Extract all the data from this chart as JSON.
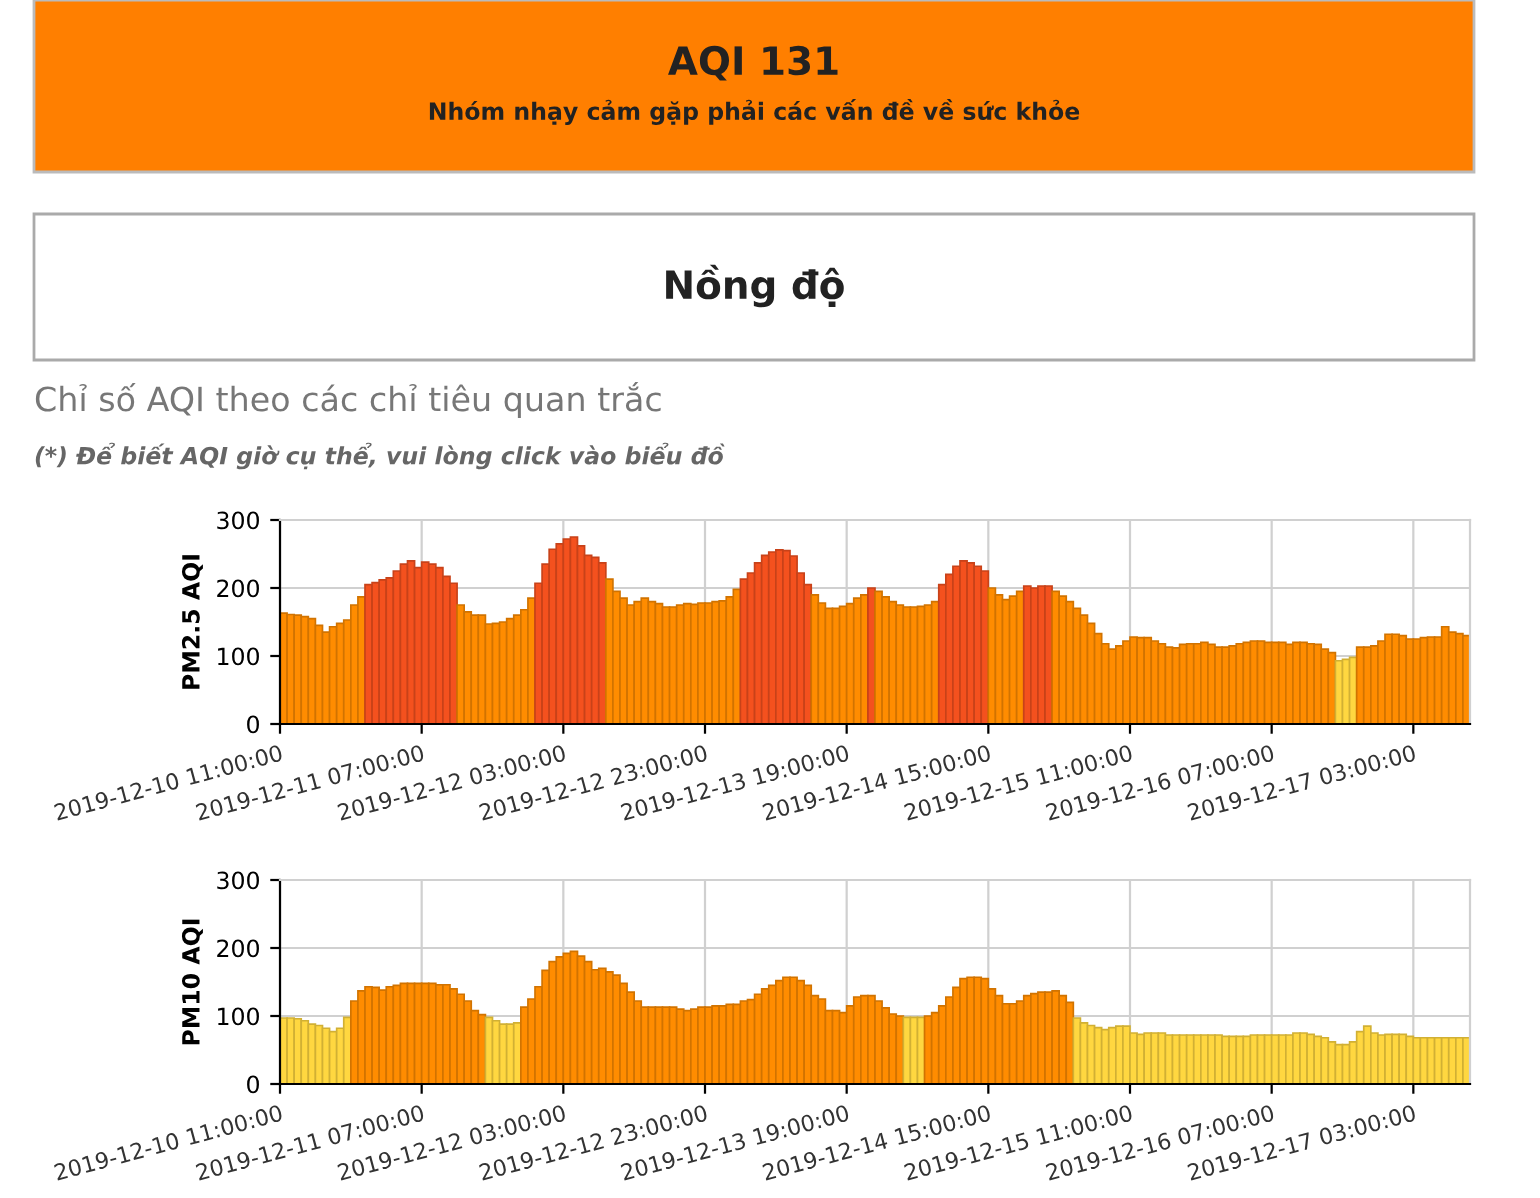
{
  "chart_data": [
    {
      "type": "bar",
      "title": "AQI 131",
      "subtitle": "Nhóm nhạy cảm gặp phải các vấn đề về sức khỏe",
      "annotations": [
        "Nồng độ",
        "Chỉ số AQI theo các chỉ tiêu quan trắc",
        "(*) Để biết AQI giờ cụ thể, vui lòng click vào biểu đồ"
      ],
      "ylabel": "PM2.5 AQI",
      "x": [
        "2019-12-10T11:00",
        "2019-12-10T12:00",
        "2019-12-10T13:00",
        "2019-12-10T14:00",
        "2019-12-10T15:00",
        "2019-12-10T16:00",
        "2019-12-10T17:00",
        "2019-12-10T18:00",
        "2019-12-10T19:00",
        "2019-12-10T20:00",
        "2019-12-10T21:00",
        "2019-12-10T22:00",
        "2019-12-10T23:00",
        "2019-12-11T00:00",
        "2019-12-11T01:00",
        "2019-12-11T02:00",
        "2019-12-11T03:00",
        "2019-12-11T04:00",
        "2019-12-11T05:00",
        "2019-12-11T06:00",
        "2019-12-11T07:00",
        "2019-12-11T08:00",
        "2019-12-11T09:00",
        "2019-12-11T10:00",
        "2019-12-11T11:00",
        "2019-12-11T12:00",
        "2019-12-11T13:00",
        "2019-12-11T14:00",
        "2019-12-11T15:00",
        "2019-12-11T16:00",
        "2019-12-11T17:00",
        "2019-12-11T18:00",
        "2019-12-11T19:00",
        "2019-12-11T20:00",
        "2019-12-11T21:00",
        "2019-12-11T22:00",
        "2019-12-11T23:00",
        "2019-12-12T00:00",
        "2019-12-12T01:00",
        "2019-12-12T02:00",
        "2019-12-12T03:00",
        "2019-12-12T04:00",
        "2019-12-12T05:00",
        "2019-12-12T06:00",
        "2019-12-12T07:00",
        "2019-12-12T08:00",
        "2019-12-12T09:00",
        "2019-12-12T10:00",
        "2019-12-12T11:00",
        "2019-12-12T12:00",
        "2019-12-12T13:00",
        "2019-12-12T14:00",
        "2019-12-12T15:00",
        "2019-12-12T16:00",
        "2019-12-12T17:00",
        "2019-12-12T18:00",
        "2019-12-12T19:00",
        "2019-12-12T20:00",
        "2019-12-12T21:00",
        "2019-12-12T22:00",
        "2019-12-12T23:00",
        "2019-12-13T00:00",
        "2019-12-13T01:00",
        "2019-12-13T02:00",
        "2019-12-13T03:00",
        "2019-12-13T04:00",
        "2019-12-13T05:00",
        "2019-12-13T06:00",
        "2019-12-13T07:00",
        "2019-12-13T08:00",
        "2019-12-13T09:00",
        "2019-12-13T10:00",
        "2019-12-13T11:00",
        "2019-12-13T12:00",
        "2019-12-13T13:00",
        "2019-12-13T14:00",
        "2019-12-13T15:00",
        "2019-12-13T16:00",
        "2019-12-13T17:00",
        "2019-12-13T18:00",
        "2019-12-13T19:00",
        "2019-12-13T20:00",
        "2019-12-13T21:00",
        "2019-12-13T22:00",
        "2019-12-13T23:00",
        "2019-12-14T00:00",
        "2019-12-14T01:00",
        "2019-12-14T02:00",
        "2019-12-14T03:00",
        "2019-12-14T04:00",
        "2019-12-14T05:00",
        "2019-12-14T06:00",
        "2019-12-14T07:00",
        "2019-12-14T08:00",
        "2019-12-14T09:00",
        "2019-12-14T10:00",
        "2019-12-14T11:00",
        "2019-12-14T12:00",
        "2019-12-14T13:00",
        "2019-12-14T14:00",
        "2019-12-14T15:00",
        "2019-12-14T16:00",
        "2019-12-14T17:00",
        "2019-12-14T18:00",
        "2019-12-14T19:00",
        "2019-12-14T20:00",
        "2019-12-14T21:00",
        "2019-12-14T22:00",
        "2019-12-14T23:00",
        "2019-12-15T00:00",
        "2019-12-15T01:00",
        "2019-12-15T02:00",
        "2019-12-15T03:00",
        "2019-12-15T04:00",
        "2019-12-15T05:00",
        "2019-12-15T06:00",
        "2019-12-15T07:00",
        "2019-12-15T08:00",
        "2019-12-15T09:00",
        "2019-12-15T10:00",
        "2019-12-15T11:00",
        "2019-12-15T12:00",
        "2019-12-15T13:00",
        "2019-12-15T14:00",
        "2019-12-15T15:00",
        "2019-12-15T16:00",
        "2019-12-15T17:00",
        "2019-12-15T18:00",
        "2019-12-15T19:00",
        "2019-12-15T20:00",
        "2019-12-15T21:00",
        "2019-12-15T22:00",
        "2019-12-15T23:00",
        "2019-12-16T00:00",
        "2019-12-16T01:00",
        "2019-12-16T02:00",
        "2019-12-16T03:00",
        "2019-12-16T04:00",
        "2019-12-16T05:00",
        "2019-12-16T06:00",
        "2019-12-16T07:00",
        "2019-12-16T08:00",
        "2019-12-16T09:00",
        "2019-12-16T10:00",
        "2019-12-16T11:00",
        "2019-12-16T12:00",
        "2019-12-16T13:00",
        "2019-12-16T14:00",
        "2019-12-16T15:00",
        "2019-12-16T16:00",
        "2019-12-16T17:00",
        "2019-12-16T18:00",
        "2019-12-16T19:00",
        "2019-12-16T20:00",
        "2019-12-16T21:00",
        "2019-12-16T22:00",
        "2019-12-16T23:00",
        "2019-12-17T00:00",
        "2019-12-17T01:00",
        "2019-12-17T02:00",
        "2019-12-17T03:00",
        "2019-12-17T04:00",
        "2019-12-17T05:00",
        "2019-12-17T06:00",
        "2019-12-17T07:00",
        "2019-12-17T08:00",
        "2019-12-17T09:00",
        "2019-12-17T10:00"
      ],
      "values": [
        163,
        161,
        160,
        158,
        155,
        145,
        135,
        143,
        148,
        153,
        175,
        187,
        205,
        208,
        212,
        215,
        225,
        235,
        240,
        230,
        238,
        235,
        230,
        217,
        207,
        175,
        165,
        160,
        160,
        147,
        148,
        150,
        155,
        160,
        168,
        185,
        207,
        235,
        257,
        265,
        272,
        275,
        262,
        248,
        245,
        237,
        213,
        195,
        185,
        175,
        180,
        185,
        180,
        177,
        172,
        172,
        175,
        177,
        176,
        178,
        178,
        180,
        181,
        187,
        198,
        213,
        222,
        237,
        248,
        253,
        256,
        255,
        247,
        222,
        205,
        190,
        178,
        170,
        170,
        173,
        177,
        185,
        190,
        200,
        195,
        187,
        180,
        175,
        172,
        172,
        173,
        175,
        180,
        205,
        220,
        232,
        240,
        237,
        232,
        225,
        200,
        190,
        183,
        188,
        195,
        203,
        200,
        203,
        203,
        195,
        188,
        180,
        170,
        160,
        148,
        133,
        118,
        110,
        115,
        122,
        128,
        127,
        127,
        122,
        118,
        113,
        112,
        117,
        118,
        118,
        120,
        117,
        113,
        113,
        115,
        118,
        120,
        122,
        122,
        120,
        120,
        120,
        117,
        120,
        120,
        118,
        117,
        110,
        105,
        93,
        95,
        98,
        113,
        113,
        115,
        122,
        132,
        132,
        130,
        125,
        125,
        127,
        128,
        128,
        143,
        135,
        133,
        130
      ],
      "colors": [
        "#ff8c00",
        "#ff8c00",
        "#ff8c00",
        "#ff8c00",
        "#ff8c00",
        "#ff8c00",
        "#ff8c00",
        "#ff8c00",
        "#ff8c00",
        "#ff8c00",
        "#ff8c00",
        "#ff8c00",
        "#f4511e",
        "#f4511e",
        "#f4511e",
        "#f4511e",
        "#f4511e",
        "#f4511e",
        "#f4511e",
        "#f4511e",
        "#f4511e",
        "#f4511e",
        "#f4511e",
        "#f4511e",
        "#f4511e",
        "#ff8c00",
        "#ff8c00",
        "#ff8c00",
        "#ff8c00",
        "#ff8c00",
        "#ff8c00",
        "#ff8c00",
        "#ff8c00",
        "#ff8c00",
        "#ff8c00",
        "#ff8c00",
        "#f4511e",
        "#f4511e",
        "#f4511e",
        "#f4511e",
        "#f4511e",
        "#f4511e",
        "#f4511e",
        "#f4511e",
        "#f4511e",
        "#f4511e",
        "#ff8c00",
        "#ff8c00",
        "#ff8c00",
        "#ff8c00",
        "#ff8c00",
        "#ff8c00",
        "#ff8c00",
        "#ff8c00",
        "#ff8c00",
        "#ff8c00",
        "#ff8c00",
        "#ff8c00",
        "#ff8c00",
        "#ff8c00",
        "#ff8c00",
        "#ff8c00",
        "#ff8c00",
        "#ff8c00",
        "#ff8c00",
        "#f4511e",
        "#f4511e",
        "#f4511e",
        "#f4511e",
        "#f4511e",
        "#f4511e",
        "#f4511e",
        "#f4511e",
        "#f4511e",
        "#f4511e",
        "#ff8c00",
        "#ff8c00",
        "#ff8c00",
        "#ff8c00",
        "#ff8c00",
        "#ff8c00",
        "#ff8c00",
        "#ff8c00",
        "#f4511e",
        "#ff8c00",
        "#ff8c00",
        "#ff8c00",
        "#ff8c00",
        "#ff8c00",
        "#ff8c00",
        "#ff8c00",
        "#ff8c00",
        "#ff8c00",
        "#f4511e",
        "#f4511e",
        "#f4511e",
        "#f4511e",
        "#f4511e",
        "#f4511e",
        "#f4511e",
        "#ff8c00",
        "#ff8c00",
        "#ff8c00",
        "#ff8c00",
        "#ff8c00",
        "#f4511e",
        "#f4511e",
        "#f4511e",
        "#f4511e",
        "#ff8c00",
        "#ff8c00",
        "#ff8c00",
        "#ff8c00",
        "#ff8c00",
        "#ff8c00",
        "#ff8c00",
        "#ff8c00",
        "#ff8c00",
        "#ff8c00",
        "#ff8c00",
        "#ff8c00",
        "#ff8c00",
        "#ff8c00",
        "#ff8c00",
        "#ff8c00",
        "#ff8c00",
        "#ff8c00",
        "#ff8c00",
        "#ff8c00",
        "#ff8c00",
        "#ff8c00",
        "#ff8c00",
        "#ff8c00",
        "#ff8c00",
        "#ff8c00",
        "#ff8c00",
        "#ff8c00",
        "#ff8c00",
        "#ff8c00",
        "#ff8c00",
        "#ff8c00",
        "#ff8c00",
        "#ff8c00",
        "#ff8c00",
        "#ff8c00",
        "#ff8c00",
        "#ff8c00",
        "#ff8c00",
        "#ff8c00",
        "#ffd740",
        "#ffd740",
        "#ffd740",
        "#ff8c00",
        "#ff8c00",
        "#ff8c00",
        "#ff8c00",
        "#ff8c00",
        "#ff8c00",
        "#ff8c00",
        "#ff8c00",
        "#ff8c00",
        "#ff8c00",
        "#ff8c00",
        "#ff8c00",
        "#ff8c00",
        "#ff8c00",
        "#ff8c00",
        "#ff8c00"
      ],
      "xlim": [
        "2019-12-10T11:00",
        "2019-12-17T11:00"
      ],
      "xticks": [
        {
          "value": "2019-12-10T11:00",
          "label": "2019-12-10 11:00:00"
        },
        {
          "value": "2019-12-11T07:00",
          "label": "2019-12-11 07:00:00"
        },
        {
          "value": "2019-12-12T03:00",
          "label": "2019-12-12 03:00:00"
        },
        {
          "value": "2019-12-12T23:00",
          "label": "2019-12-12 23:00:00"
        },
        {
          "value": "2019-12-13T19:00",
          "label": "2019-12-13 19:00:00"
        },
        {
          "value": "2019-12-14T15:00",
          "label": "2019-12-14 15:00:00"
        },
        {
          "value": "2019-12-15T11:00",
          "label": "2019-12-15 11:00:00"
        },
        {
          "value": "2019-12-16T07:00",
          "label": "2019-12-16 07:00:00"
        },
        {
          "value": "2019-12-17T03:00",
          "label": "2019-12-17 03:00:00"
        }
      ],
      "ylim": [
        0,
        300
      ],
      "yticks": [
        0,
        100,
        200,
        300
      ],
      "grid": true,
      "legend": false
    },
    {
      "type": "bar",
      "ylabel": "PM10 AQI",
      "x": [
        "2019-12-10T11:00",
        "2019-12-10T12:00",
        "2019-12-10T13:00",
        "2019-12-10T14:00",
        "2019-12-10T15:00",
        "2019-12-10T16:00",
        "2019-12-10T17:00",
        "2019-12-10T18:00",
        "2019-12-10T19:00",
        "2019-12-10T20:00",
        "2019-12-10T21:00",
        "2019-12-10T22:00",
        "2019-12-10T23:00",
        "2019-12-11T00:00",
        "2019-12-11T01:00",
        "2019-12-11T02:00",
        "2019-12-11T03:00",
        "2019-12-11T04:00",
        "2019-12-11T05:00",
        "2019-12-11T06:00",
        "2019-12-11T07:00",
        "2019-12-11T08:00",
        "2019-12-11T09:00",
        "2019-12-11T10:00",
        "2019-12-11T11:00",
        "2019-12-11T12:00",
        "2019-12-11T13:00",
        "2019-12-11T14:00",
        "2019-12-11T15:00",
        "2019-12-11T16:00",
        "2019-12-11T17:00",
        "2019-12-11T18:00",
        "2019-12-11T19:00",
        "2019-12-11T20:00",
        "2019-12-11T21:00",
        "2019-12-11T22:00",
        "2019-12-11T23:00",
        "2019-12-12T00:00",
        "2019-12-12T01:00",
        "2019-12-12T02:00",
        "2019-12-12T03:00",
        "2019-12-12T04:00",
        "2019-12-12T05:00",
        "2019-12-12T06:00",
        "2019-12-12T07:00",
        "2019-12-12T08:00",
        "2019-12-12T09:00",
        "2019-12-12T10:00",
        "2019-12-12T11:00",
        "2019-12-12T12:00",
        "2019-12-12T13:00",
        "2019-12-12T14:00",
        "2019-12-12T15:00",
        "2019-12-12T16:00",
        "2019-12-12T17:00",
        "2019-12-12T18:00",
        "2019-12-12T19:00",
        "2019-12-12T20:00",
        "2019-12-12T21:00",
        "2019-12-12T22:00",
        "2019-12-12T23:00",
        "2019-12-13T00:00",
        "2019-12-13T01:00",
        "2019-12-13T02:00",
        "2019-12-13T03:00",
        "2019-12-13T04:00",
        "2019-12-13T05:00",
        "2019-12-13T06:00",
        "2019-12-13T07:00",
        "2019-12-13T08:00",
        "2019-12-13T09:00",
        "2019-12-13T10:00",
        "2019-12-13T11:00",
        "2019-12-13T12:00",
        "2019-12-13T13:00",
        "2019-12-13T14:00",
        "2019-12-13T15:00",
        "2019-12-13T16:00",
        "2019-12-13T17:00",
        "2019-12-13T18:00",
        "2019-12-13T19:00",
        "2019-12-13T20:00",
        "2019-12-13T21:00",
        "2019-12-13T22:00",
        "2019-12-13T23:00",
        "2019-12-14T00:00",
        "2019-12-14T01:00",
        "2019-12-14T02:00",
        "2019-12-14T03:00",
        "2019-12-14T04:00",
        "2019-12-14T05:00",
        "2019-12-14T06:00",
        "2019-12-14T07:00",
        "2019-12-14T08:00",
        "2019-12-14T09:00",
        "2019-12-14T10:00",
        "2019-12-14T11:00",
        "2019-12-14T12:00",
        "2019-12-14T13:00",
        "2019-12-14T14:00",
        "2019-12-14T15:00",
        "2019-12-14T16:00",
        "2019-12-14T17:00",
        "2019-12-14T18:00",
        "2019-12-14T19:00",
        "2019-12-14T20:00",
        "2019-12-14T21:00",
        "2019-12-14T22:00",
        "2019-12-14T23:00",
        "2019-12-15T00:00",
        "2019-12-15T01:00",
        "2019-12-15T02:00",
        "2019-12-15T03:00",
        "2019-12-15T04:00",
        "2019-12-15T05:00",
        "2019-12-15T06:00",
        "2019-12-15T07:00",
        "2019-12-15T08:00",
        "2019-12-15T09:00",
        "2019-12-15T10:00",
        "2019-12-15T11:00",
        "2019-12-15T12:00",
        "2019-12-15T13:00",
        "2019-12-15T14:00",
        "2019-12-15T15:00",
        "2019-12-15T16:00",
        "2019-12-15T17:00",
        "2019-12-15T18:00",
        "2019-12-15T19:00",
        "2019-12-15T20:00",
        "2019-12-15T21:00",
        "2019-12-15T22:00",
        "2019-12-15T23:00",
        "2019-12-16T00:00",
        "2019-12-16T01:00",
        "2019-12-16T02:00",
        "2019-12-16T03:00",
        "2019-12-16T04:00",
        "2019-12-16T05:00",
        "2019-12-16T06:00",
        "2019-12-16T07:00",
        "2019-12-16T08:00",
        "2019-12-16T09:00",
        "2019-12-16T10:00",
        "2019-12-16T11:00",
        "2019-12-16T12:00",
        "2019-12-16T13:00",
        "2019-12-16T14:00",
        "2019-12-16T15:00",
        "2019-12-16T16:00",
        "2019-12-16T17:00",
        "2019-12-16T18:00",
        "2019-12-16T19:00",
        "2019-12-16T20:00",
        "2019-12-16T21:00",
        "2019-12-16T22:00",
        "2019-12-16T23:00",
        "2019-12-17T00:00",
        "2019-12-17T01:00",
        "2019-12-17T02:00",
        "2019-12-17T03:00",
        "2019-12-17T04:00",
        "2019-12-17T05:00",
        "2019-12-17T06:00",
        "2019-12-17T07:00",
        "2019-12-17T08:00",
        "2019-12-17T09:00",
        "2019-12-17T10:00"
      ],
      "values": [
        97,
        97,
        96,
        93,
        88,
        86,
        82,
        77,
        82,
        98,
        122,
        137,
        143,
        142,
        138,
        143,
        145,
        148,
        148,
        148,
        148,
        148,
        146,
        146,
        140,
        132,
        122,
        108,
        102,
        98,
        93,
        88,
        88,
        90,
        113,
        125,
        143,
        167,
        180,
        187,
        192,
        195,
        188,
        180,
        168,
        170,
        165,
        160,
        148,
        135,
        122,
        113,
        113,
        113,
        113,
        113,
        110,
        108,
        110,
        113,
        113,
        115,
        115,
        117,
        117,
        122,
        124,
        132,
        140,
        145,
        152,
        157,
        157,
        152,
        145,
        130,
        125,
        108,
        108,
        105,
        115,
        128,
        130,
        130,
        122,
        112,
        103,
        100,
        98,
        98,
        98,
        100,
        105,
        115,
        128,
        142,
        155,
        157,
        157,
        155,
        140,
        130,
        118,
        118,
        122,
        130,
        133,
        135,
        135,
        137,
        130,
        120,
        97,
        90,
        86,
        83,
        80,
        83,
        85,
        85,
        75,
        73,
        75,
        75,
        75,
        72,
        72,
        72,
        72,
        72,
        72,
        72,
        72,
        70,
        70,
        70,
        70,
        72,
        72,
        72,
        72,
        72,
        72,
        75,
        75,
        73,
        70,
        68,
        62,
        58,
        58,
        62,
        77,
        85,
        75,
        72,
        73,
        73,
        73,
        70,
        68,
        68,
        68,
        68,
        68,
        68,
        68,
        68
      ],
      "colors": [
        "#ffd740",
        "#ffd740",
        "#ffd740",
        "#ffd740",
        "#ffd740",
        "#ffd740",
        "#ffd740",
        "#ffd740",
        "#ffd740",
        "#ffd740",
        "#ff8c00",
        "#ff8c00",
        "#ff8c00",
        "#ff8c00",
        "#ff8c00",
        "#ff8c00",
        "#ff8c00",
        "#ff8c00",
        "#ff8c00",
        "#ff8c00",
        "#ff8c00",
        "#ff8c00",
        "#ff8c00",
        "#ff8c00",
        "#ff8c00",
        "#ff8c00",
        "#ff8c00",
        "#ff8c00",
        "#ff8c00",
        "#ffd740",
        "#ffd740",
        "#ffd740",
        "#ffd740",
        "#ffd740",
        "#ff8c00",
        "#ff8c00",
        "#ff8c00",
        "#ff8c00",
        "#ff8c00",
        "#ff8c00",
        "#ff8c00",
        "#ff8c00",
        "#ff8c00",
        "#ff8c00",
        "#ff8c00",
        "#ff8c00",
        "#ff8c00",
        "#ff8c00",
        "#ff8c00",
        "#ff8c00",
        "#ff8c00",
        "#ff8c00",
        "#ff8c00",
        "#ff8c00",
        "#ff8c00",
        "#ff8c00",
        "#ff8c00",
        "#ff8c00",
        "#ff8c00",
        "#ff8c00",
        "#ff8c00",
        "#ff8c00",
        "#ff8c00",
        "#ff8c00",
        "#ff8c00",
        "#ff8c00",
        "#ff8c00",
        "#ff8c00",
        "#ff8c00",
        "#ff8c00",
        "#ff8c00",
        "#ff8c00",
        "#ff8c00",
        "#ff8c00",
        "#ff8c00",
        "#ff8c00",
        "#ff8c00",
        "#ff8c00",
        "#ff8c00",
        "#ff8c00",
        "#ff8c00",
        "#ff8c00",
        "#ff8c00",
        "#ff8c00",
        "#ff8c00",
        "#ff8c00",
        "#ff8c00",
        "#ff8c00",
        "#ffd740",
        "#ffd740",
        "#ffd740",
        "#ff8c00",
        "#ff8c00",
        "#ff8c00",
        "#ff8c00",
        "#ff8c00",
        "#ff8c00",
        "#ff8c00",
        "#ff8c00",
        "#ff8c00",
        "#ff8c00",
        "#ff8c00",
        "#ff8c00",
        "#ff8c00",
        "#ff8c00",
        "#ff8c00",
        "#ff8c00",
        "#ff8c00",
        "#ff8c00",
        "#ff8c00",
        "#ff8c00",
        "#ff8c00",
        "#ffd740",
        "#ffd740",
        "#ffd740",
        "#ffd740",
        "#ffd740",
        "#ffd740",
        "#ffd740",
        "#ffd740",
        "#ffd740",
        "#ffd740",
        "#ffd740",
        "#ffd740",
        "#ffd740",
        "#ffd740",
        "#ffd740",
        "#ffd740",
        "#ffd740",
        "#ffd740",
        "#ffd740",
        "#ffd740",
        "#ffd740",
        "#ffd740",
        "#ffd740",
        "#ffd740",
        "#ffd740",
        "#ffd740",
        "#ffd740",
        "#ffd740",
        "#ffd740",
        "#ffd740",
        "#ffd740",
        "#ffd740",
        "#ffd740",
        "#ffd740",
        "#ffd740",
        "#ffd740",
        "#ffd740",
        "#ffd740",
        "#ffd740",
        "#ffd740",
        "#ffd740",
        "#ffd740",
        "#ffd740",
        "#ffd740",
        "#ffd740",
        "#ffd740",
        "#ffd740",
        "#ffd740",
        "#ffd740",
        "#ffd740",
        "#ffd740",
        "#ffd740",
        "#ffd740",
        "#ffd740",
        "#ffd740",
        "#ffd740"
      ],
      "xlim": [
        "2019-12-10T11:00",
        "2019-12-17T11:00"
      ],
      "xticks": [
        {
          "value": "2019-12-10T11:00",
          "label": "2019-12-10 11:00:00"
        },
        {
          "value": "2019-12-11T07:00",
          "label": "2019-12-11 07:00:00"
        },
        {
          "value": "2019-12-12T03:00",
          "label": "2019-12-12 03:00:00"
        },
        {
          "value": "2019-12-12T23:00",
          "label": "2019-12-12 23:00:00"
        },
        {
          "value": "2019-12-13T19:00",
          "label": "2019-12-13 19:00:00"
        },
        {
          "value": "2019-12-14T15:00",
          "label": "2019-12-14 15:00:00"
        },
        {
          "value": "2019-12-15T11:00",
          "label": "2019-12-15 11:00:00"
        },
        {
          "value": "2019-12-16T07:00",
          "label": "2019-12-16 07:00:00"
        },
        {
          "value": "2019-12-17T03:00",
          "label": "2019-12-17 03:00:00"
        }
      ],
      "ylim": [
        0,
        300
      ],
      "yticks": [
        0,
        100,
        200,
        300
      ],
      "grid": true,
      "legend": false
    }
  ]
}
